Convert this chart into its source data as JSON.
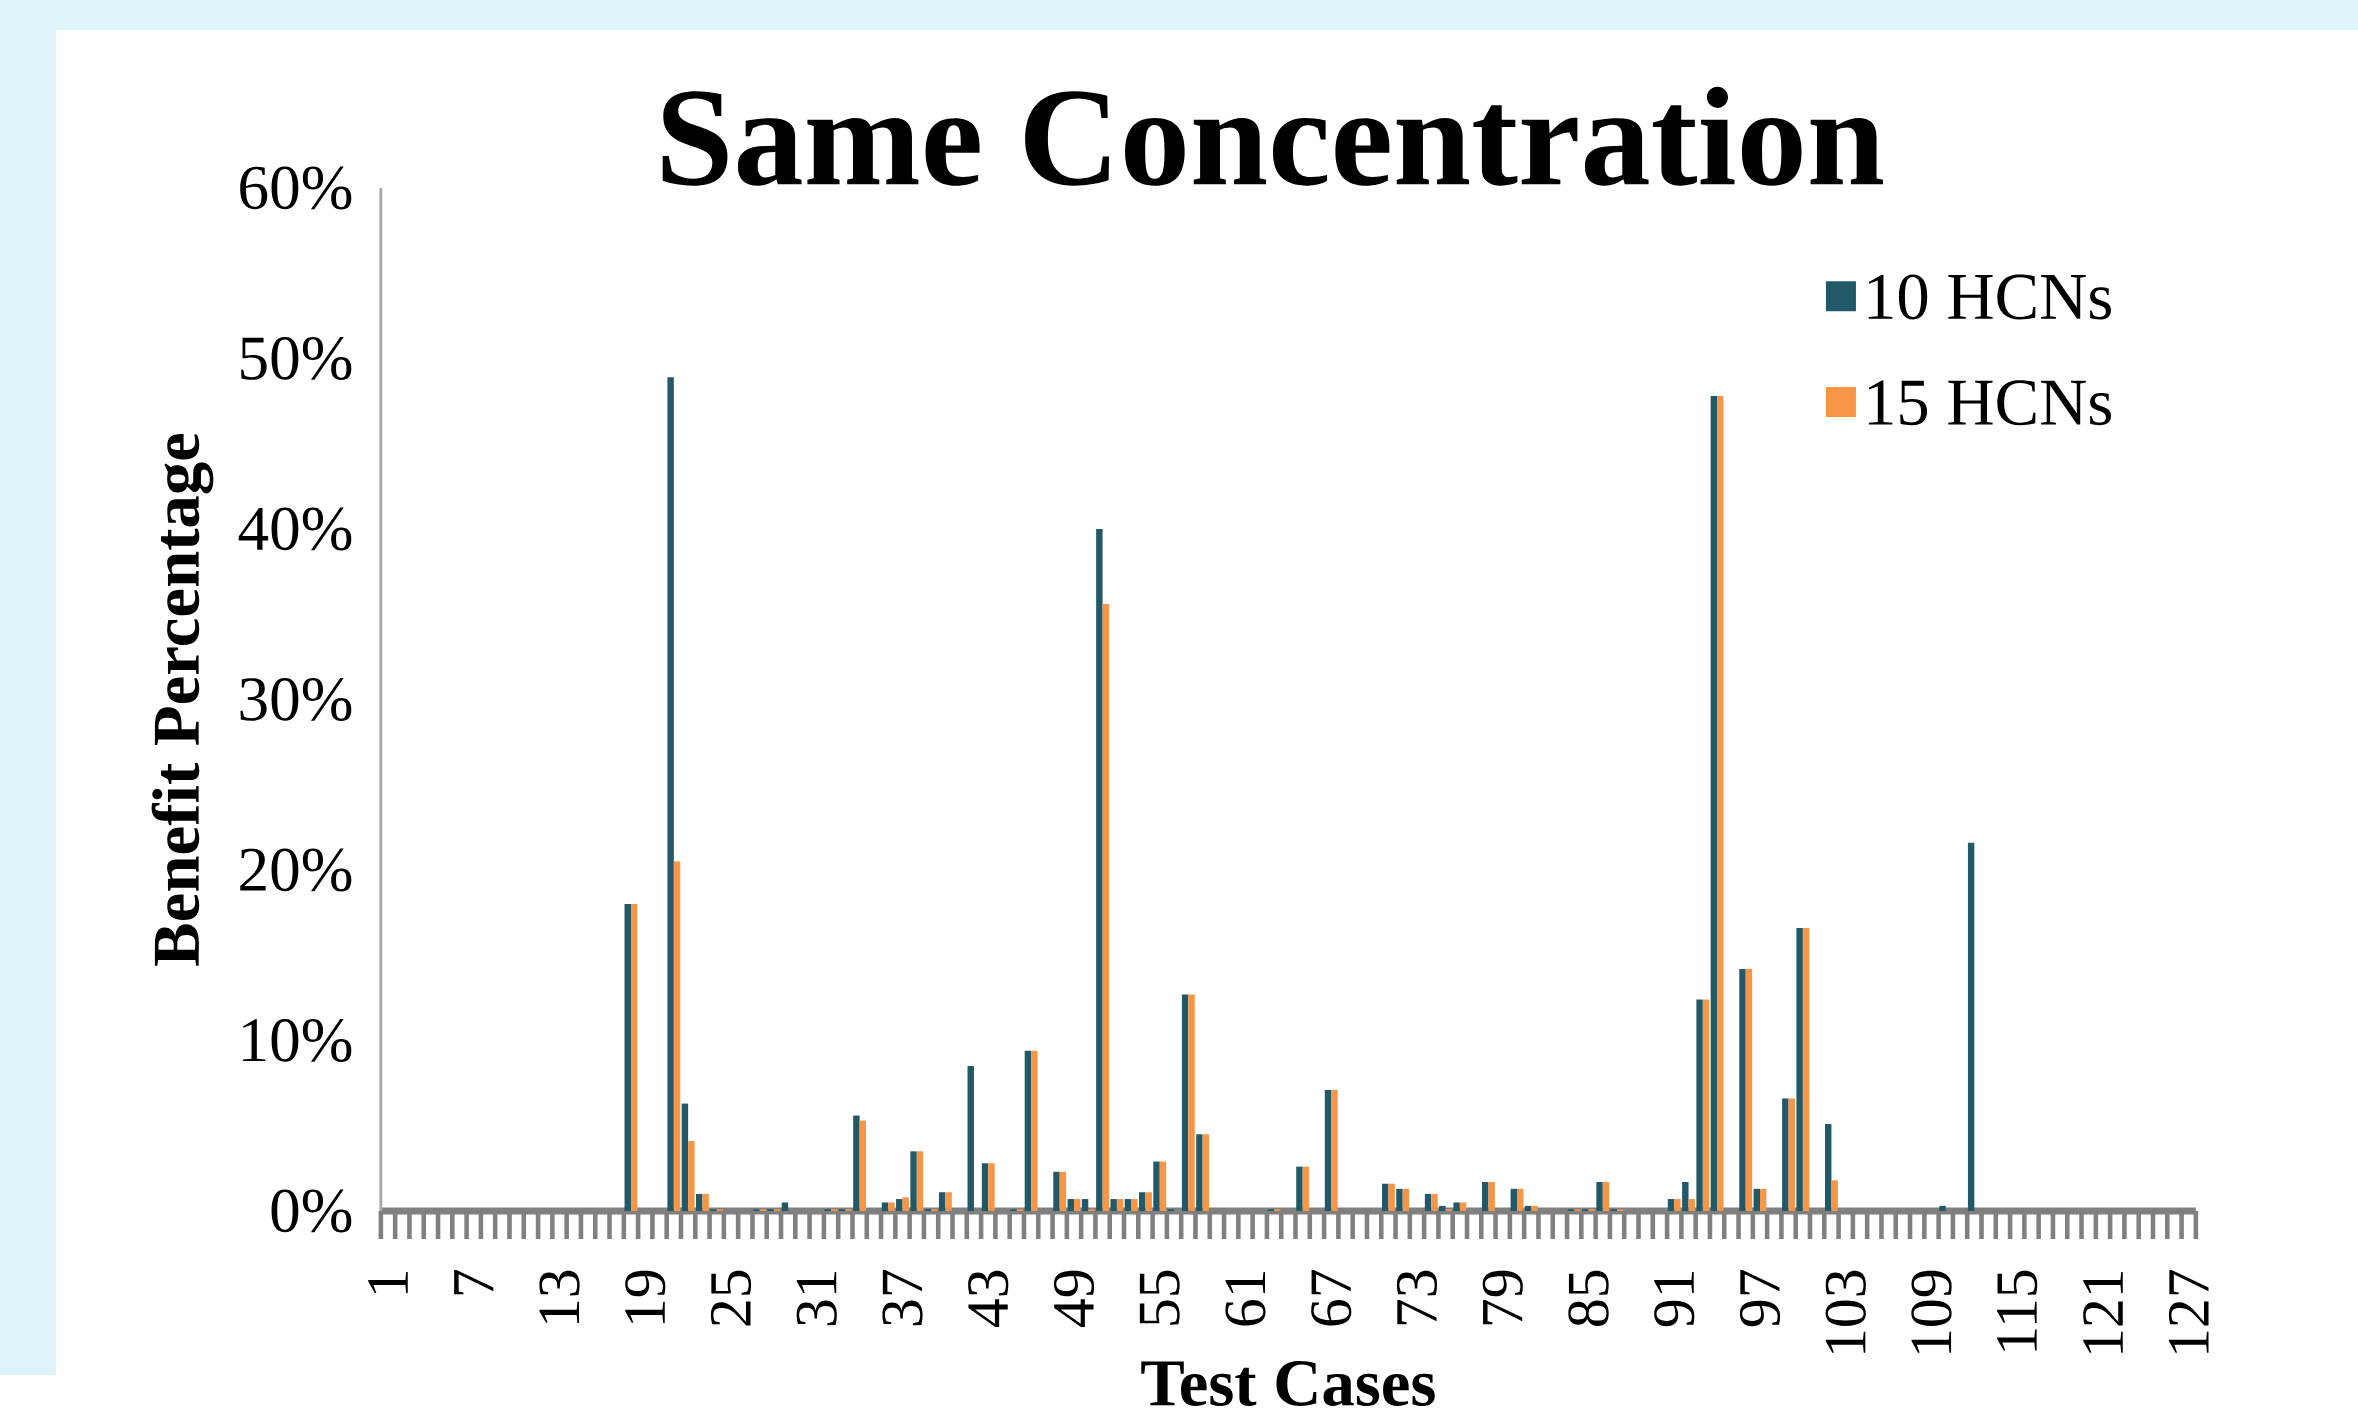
{
  "chart_data": {
    "type": "bar",
    "title": "Same Concentration",
    "xlabel": "Test Cases",
    "ylabel": "Benefit Percentage",
    "categories": [
      "1",
      null,
      null,
      null,
      null,
      null,
      "7",
      null,
      null,
      null,
      null,
      null,
      "13",
      null,
      null,
      null,
      null,
      null,
      "19",
      null,
      null,
      null,
      null,
      null,
      "25",
      null,
      null,
      null,
      null,
      null,
      "31",
      null,
      null,
      null,
      null,
      null,
      "37",
      null,
      null,
      null,
      null,
      null,
      "43",
      null,
      null,
      null,
      null,
      null,
      "49",
      null,
      null,
      null,
      null,
      null,
      "55",
      null,
      null,
      null,
      null,
      null,
      "61",
      null,
      null,
      null,
      null,
      null,
      "67",
      null,
      null,
      null,
      null,
      null,
      "73",
      null,
      null,
      null,
      null,
      null,
      "79",
      null,
      null,
      null,
      null,
      null,
      "85",
      null,
      null,
      null,
      null,
      null,
      "91",
      null,
      null,
      null,
      null,
      null,
      "97",
      null,
      null,
      null,
      null,
      null,
      "103",
      null,
      null,
      null,
      null,
      null,
      "109",
      null,
      null,
      null,
      null,
      null,
      "115",
      null,
      null,
      null,
      null,
      null,
      "121",
      null,
      null,
      null,
      null,
      null,
      "127"
    ],
    "series": [
      {
        "name": "10 HCNs",
        "color": "#215968",
        "values": [
          null,
          null,
          null,
          null,
          null,
          null,
          null,
          null,
          null,
          null,
          null,
          null,
          null,
          null,
          null,
          null,
          null,
          18.0,
          null,
          null,
          48.9,
          6.3,
          1.0,
          0.1,
          null,
          null,
          0.1,
          0.1,
          0.5,
          null,
          null,
          0.1,
          0.1,
          5.6,
          null,
          0.5,
          0.7,
          3.5,
          0.1,
          1.1,
          null,
          8.5,
          2.8,
          null,
          0.1,
          9.4,
          null,
          2.3,
          0.7,
          0.7,
          40.0,
          0.7,
          0.7,
          1.1,
          2.9,
          0.1,
          12.7,
          4.5,
          null,
          null,
          null,
          null,
          0.1,
          null,
          2.6,
          null,
          7.1,
          null,
          null,
          null,
          1.6,
          1.3,
          null,
          1.0,
          0.3,
          0.5,
          null,
          1.7,
          null,
          1.3,
          0.3,
          null,
          null,
          0.1,
          0.1,
          1.7,
          0.1,
          null,
          null,
          null,
          0.7,
          1.7,
          12.4,
          47.8,
          null,
          14.2,
          1.3,
          null,
          6.6,
          16.6,
          null,
          5.1,
          null,
          null,
          null,
          null,
          null,
          null,
          null,
          0.3,
          null,
          21.6,
          null,
          null,
          null,
          null,
          null,
          null,
          null,
          null,
          null,
          null,
          null,
          null,
          null,
          null,
          null
        ]
      },
      {
        "name": "15 HCNs",
        "color": "#f79646",
        "values": [
          null,
          null,
          null,
          null,
          null,
          null,
          null,
          null,
          null,
          null,
          null,
          null,
          null,
          null,
          null,
          null,
          null,
          18.0,
          null,
          null,
          20.5,
          4.1,
          1.0,
          0.1,
          null,
          null,
          0.1,
          0.1,
          null,
          null,
          null,
          0.1,
          0.1,
          5.3,
          null,
          0.5,
          0.8,
          3.5,
          0.1,
          1.1,
          null,
          null,
          2.8,
          null,
          0.1,
          9.4,
          null,
          2.3,
          0.7,
          0.1,
          35.6,
          0.7,
          0.7,
          1.1,
          2.9,
          null,
          12.7,
          4.5,
          null,
          null,
          null,
          null,
          0.1,
          null,
          2.6,
          null,
          7.1,
          null,
          null,
          null,
          1.6,
          1.3,
          null,
          1.0,
          0.1,
          0.5,
          null,
          1.7,
          null,
          1.3,
          0.3,
          null,
          null,
          0.1,
          0.1,
          1.7,
          0.1,
          null,
          null,
          null,
          0.7,
          0.7,
          12.4,
          47.8,
          null,
          14.2,
          1.3,
          null,
          6.6,
          16.6,
          null,
          1.8,
          null,
          null,
          null,
          null,
          null,
          null,
          null,
          null,
          null,
          null,
          null,
          null,
          null,
          null,
          null,
          null,
          null,
          null,
          null,
          null,
          null,
          null,
          null,
          null,
          null
        ]
      }
    ],
    "ylim": [
      0,
      60
    ],
    "yticks": [
      {
        "value": 0,
        "label": "0%"
      },
      {
        "value": 10,
        "label": "10%"
      },
      {
        "value": 20,
        "label": "20%"
      },
      {
        "value": 30,
        "label": "30%"
      },
      {
        "value": 40,
        "label": "40%"
      },
      {
        "value": 50,
        "label": "50%"
      },
      {
        "value": 60,
        "label": "60%"
      }
    ],
    "legend": "top right"
  }
}
